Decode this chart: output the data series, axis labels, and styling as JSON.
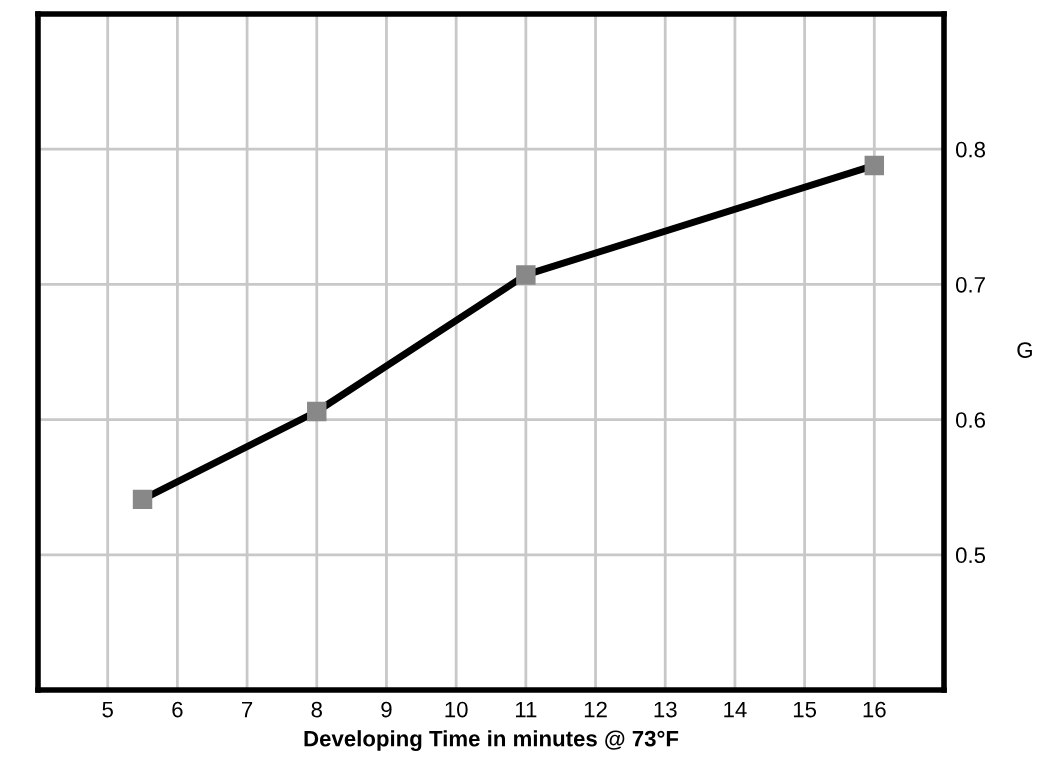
{
  "chart_data": {
    "type": "line",
    "xlabel": "Developing Time in minutes @ 73°F",
    "ylabel": "G",
    "x": [
      5.5,
      8,
      11,
      16
    ],
    "series": [
      {
        "color": "#000000",
        "values": [
          0.541,
          0.606,
          0.707,
          0.788
        ]
      }
    ],
    "xlim": [
      4,
      17
    ],
    "xticks": [
      5,
      6,
      7,
      8,
      9,
      10,
      11,
      12,
      13,
      14,
      15,
      16
    ],
    "ylim": [
      0.4,
      0.9
    ],
    "yticks": [
      0.5,
      0.6,
      0.7,
      0.8
    ],
    "grid": true,
    "marker": "square",
    "line_style": "solid",
    "legend": false
  }
}
